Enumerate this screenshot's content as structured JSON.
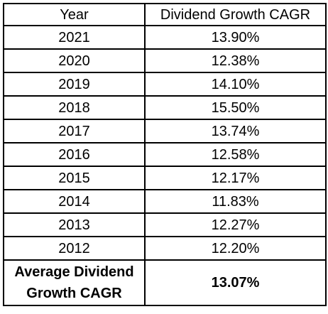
{
  "table": {
    "headers": {
      "year": "Year",
      "cagr": "Dividend Growth CAGR"
    },
    "rows": [
      {
        "year": "2021",
        "cagr": "13.90%"
      },
      {
        "year": "2020",
        "cagr": "12.38%"
      },
      {
        "year": "2019",
        "cagr": "14.10%"
      },
      {
        "year": "2018",
        "cagr": "15.50%"
      },
      {
        "year": "2017",
        "cagr": "13.74%"
      },
      {
        "year": "2016",
        "cagr": "12.58%"
      },
      {
        "year": "2015",
        "cagr": "12.17%"
      },
      {
        "year": "2014",
        "cagr": "11.83%"
      },
      {
        "year": "2013",
        "cagr": "12.27%"
      },
      {
        "year": "2012",
        "cagr": "12.20%"
      }
    ],
    "summary": {
      "label_line1": "Average Dividend",
      "label_line2": "Growth CAGR",
      "value": "13.07%"
    }
  }
}
